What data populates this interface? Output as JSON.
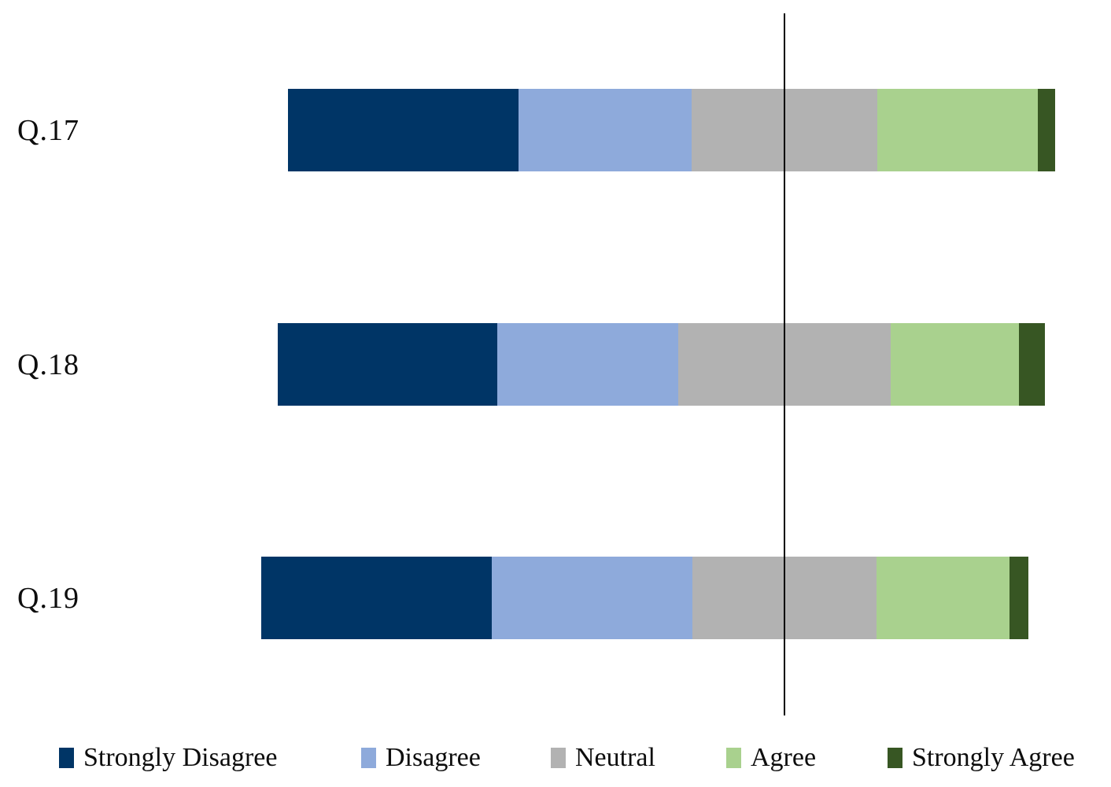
{
  "chart_data": {
    "type": "bar",
    "variant": "diverging-stacked-horizontal",
    "title": "",
    "xlabel": "",
    "ylabel": "",
    "grid": false,
    "legend_position": "bottom",
    "categories": [
      "Q.17",
      "Q.18",
      "Q.19"
    ],
    "unit": "percent (estimated from bar geometry; no numeric labels shown)",
    "series": [
      {
        "name": "Strongly Disagree",
        "color": "#003566",
        "values": [
          30.0,
          28.6,
          30.0
        ]
      },
      {
        "name": "Disagree",
        "color": "#8EAADB",
        "values": [
          22.6,
          23.6,
          26.2
        ]
      },
      {
        "name": "Neutral",
        "color": "#B2B2B2",
        "values": [
          24.2,
          27.7,
          24.0
        ]
      },
      {
        "name": "Agree",
        "color": "#A9D18E",
        "values": [
          20.9,
          16.7,
          17.3
        ]
      },
      {
        "name": "Strongly Agree",
        "color": "#375623",
        "values": [
          2.3,
          3.4,
          2.5
        ]
      }
    ],
    "center_line": {
      "description": "vertical reference line through the midpoint of the Neutral segments",
      "color": "#000000"
    }
  }
}
